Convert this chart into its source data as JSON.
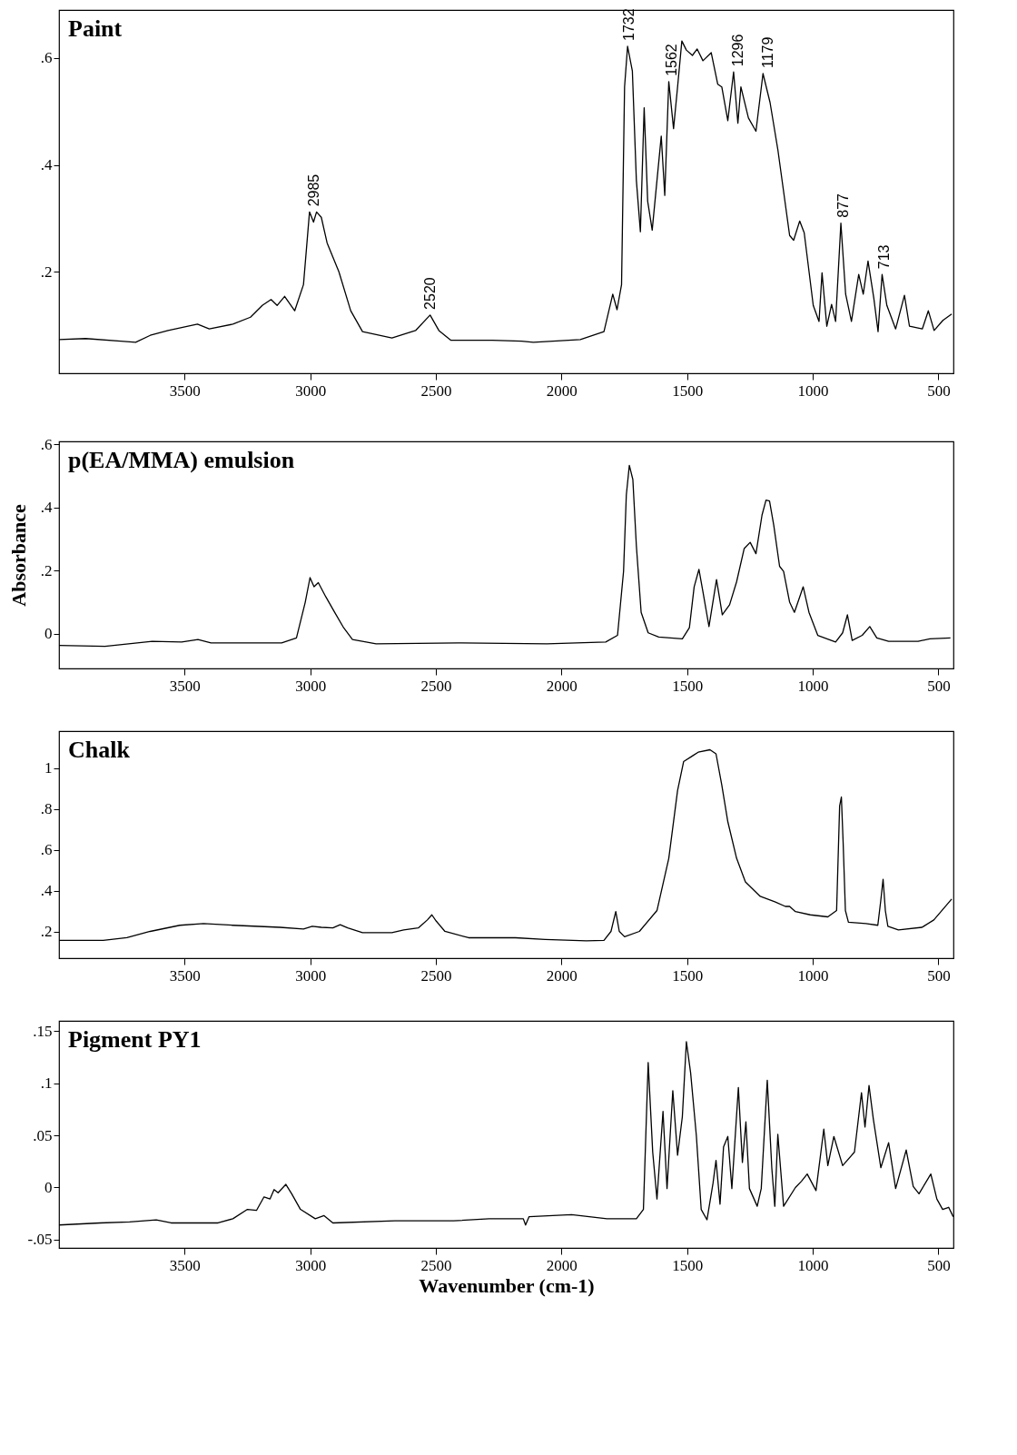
{
  "chart_data": [
    {
      "type": "line",
      "title": "Paint",
      "xlim": [
        4000,
        440
      ],
      "xticks": [
        3500,
        3000,
        2500,
        2000,
        1500,
        1000,
        500
      ],
      "ylim": [
        0.01,
        0.69
      ],
      "yticks": [
        {
          "value": 0.2,
          "label": ".2"
        },
        {
          "value": 0.4,
          "label": ".4"
        },
        {
          "value": 0.6,
          "label": ".6"
        }
      ],
      "grid": false,
      "marker": "none",
      "annotations": [
        {
          "text": "2985",
          "x": 2985,
          "y": 0.312
        },
        {
          "text": "2520",
          "x": 2520,
          "y": 0.119
        },
        {
          "text": "1732",
          "x": 1732,
          "y": 0.622
        },
        {
          "text": "1562",
          "x": 1562,
          "y": 0.556
        },
        {
          "text": "1296",
          "x": 1296,
          "y": 0.574
        },
        {
          "text": "1179",
          "x": 1179,
          "y": 0.571
        },
        {
          "text": "877",
          "x": 877,
          "y": 0.291
        },
        {
          "text": "713",
          "x": 713,
          "y": 0.195
        }
      ],
      "series": [
        {
          "color": "#000000",
          "x": [
            4000,
            3894,
            3754,
            3695,
            3637,
            3566,
            3449,
            3402,
            3308,
            3238,
            3191,
            3156,
            3132,
            3102,
            3062,
            3027,
            3003,
            2987,
            2975,
            2956,
            2933,
            2886,
            2839,
            2792,
            2675,
            2581,
            2523,
            2488,
            2441,
            2276,
            2159,
            2112,
            1925,
            1831,
            1796,
            1779,
            1761,
            1749,
            1737,
            1718,
            1702,
            1686,
            1671,
            1657,
            1639,
            1620,
            1603,
            1589,
            1573,
            1554,
            1538,
            1521,
            1503,
            1479,
            1460,
            1437,
            1404,
            1378,
            1362,
            1338,
            1315,
            1298,
            1286,
            1256,
            1226,
            1198,
            1170,
            1139,
            1092,
            1076,
            1052,
            1034,
            998,
            975,
            963,
            944,
            925,
            909,
            888,
            869,
            846,
            817,
            799,
            780,
            757,
            740,
            724,
            705,
            670,
            635,
            615,
            564,
            540,
            517,
            482,
            447
          ],
          "values": [
            0.073,
            0.075,
            0.07,
            0.068,
            0.081,
            0.09,
            0.102,
            0.093,
            0.102,
            0.115,
            0.137,
            0.148,
            0.137,
            0.154,
            0.127,
            0.176,
            0.312,
            0.293,
            0.312,
            0.302,
            0.254,
            0.2,
            0.127,
            0.088,
            0.076,
            0.09,
            0.119,
            0.09,
            0.072,
            0.072,
            0.07,
            0.068,
            0.073,
            0.088,
            0.158,
            0.129,
            0.176,
            0.546,
            0.622,
            0.576,
            0.371,
            0.275,
            0.507,
            0.332,
            0.278,
            0.371,
            0.454,
            0.343,
            0.556,
            0.468,
            0.546,
            0.632,
            0.615,
            0.605,
            0.617,
            0.595,
            0.61,
            0.551,
            0.546,
            0.483,
            0.574,
            0.478,
            0.546,
            0.488,
            0.463,
            0.571,
            0.517,
            0.429,
            0.268,
            0.259,
            0.295,
            0.273,
            0.137,
            0.107,
            0.198,
            0.098,
            0.139,
            0.107,
            0.291,
            0.158,
            0.107,
            0.195,
            0.158,
            0.22,
            0.151,
            0.088,
            0.195,
            0.137,
            0.093,
            0.156,
            0.098,
            0.093,
            0.127,
            0.09,
            0.109,
            0.121
          ]
        }
      ]
    },
    {
      "type": "line",
      "title": "p(EA/MMA) emulsion",
      "ylabel": "Absorbance",
      "xlim": [
        4000,
        440
      ],
      "xticks": [
        3500,
        3000,
        2500,
        2000,
        1500,
        1000,
        500
      ],
      "ylim": [
        -0.11,
        0.61
      ],
      "yticks": [
        {
          "value": 0,
          "label": "0"
        },
        {
          "value": 0.2,
          "label": ".2"
        },
        {
          "value": 0.4,
          "label": ".4"
        },
        {
          "value": 0.6,
          "label": ".6"
        }
      ],
      "grid": false,
      "marker": "none",
      "series": [
        {
          "color": "#000000",
          "x": [
            4000,
            3817,
            3629,
            3512,
            3447,
            3395,
            3114,
            3055,
            3020,
            3001,
            2985,
            2968,
            2938,
            2903,
            2867,
            2832,
            2738,
            2410,
            2058,
            1824,
            1777,
            1753,
            1742,
            1730,
            1716,
            1702,
            1683,
            1655,
            1613,
            1566,
            1519,
            1491,
            1472,
            1453,
            1437,
            1413,
            1383,
            1360,
            1331,
            1303,
            1273,
            1249,
            1226,
            1202,
            1186,
            1172,
            1155,
            1132,
            1116,
            1092,
            1073,
            1038,
            1015,
            980,
            909,
            881,
            862,
            843,
            803,
            773,
            745,
            698,
            581,
            534,
            452
          ],
          "values": [
            -0.037,
            -0.04,
            -0.024,
            -0.026,
            -0.018,
            -0.029,
            -0.029,
            -0.013,
            0.1,
            0.178,
            0.149,
            0.162,
            0.117,
            0.068,
            0.019,
            -0.018,
            -0.032,
            -0.029,
            -0.032,
            -0.026,
            -0.005,
            0.198,
            0.44,
            0.534,
            0.489,
            0.279,
            0.068,
            0.003,
            -0.01,
            -0.013,
            -0.016,
            0.019,
            0.149,
            0.204,
            0.133,
            0.023,
            0.172,
            0.06,
            0.092,
            0.165,
            0.27,
            0.29,
            0.254,
            0.376,
            0.424,
            0.421,
            0.343,
            0.214,
            0.198,
            0.1,
            0.068,
            0.149,
            0.068,
            -0.005,
            -0.026,
            0.003,
            0.06,
            -0.021,
            -0.005,
            0.023,
            -0.013,
            -0.024,
            -0.024,
            -0.016,
            -0.013
          ]
        }
      ]
    },
    {
      "type": "line",
      "title": "Chalk",
      "xlim": [
        4000,
        440
      ],
      "xticks": [
        3500,
        3000,
        2500,
        2000,
        1500,
        1000,
        500
      ],
      "ylim": [
        0.07,
        1.18
      ],
      "yticks": [
        {
          "value": 0.2,
          "label": ".2"
        },
        {
          "value": 0.4,
          "label": ".4"
        },
        {
          "value": 0.6,
          "label": ".6"
        },
        {
          "value": 0.8,
          "label": ".8"
        },
        {
          "value": 1,
          "label": "1"
        }
      ],
      "grid": false,
      "marker": "none",
      "series": [
        {
          "color": "#000000",
          "x": [
            4000,
            3824,
            3730,
            3637,
            3519,
            3425,
            3308,
            3121,
            3027,
            2992,
            2956,
            2910,
            2881,
            2851,
            2792,
            2675,
            2628,
            2570,
            2534,
            2516,
            2499,
            2464,
            2370,
            2183,
            2065,
            1901,
            1831,
            1803,
            1784,
            1770,
            1749,
            1690,
            1620,
            1573,
            1538,
            1514,
            1456,
            1409,
            1385,
            1362,
            1338,
            1303,
            1268,
            1209,
            1151,
            1109,
            1092,
            1069,
            1010,
            940,
            905,
            893,
            886,
            879,
            870,
            858,
            788,
            741,
            729,
            720,
            711,
            701,
            659,
            565,
            518,
            447
          ],
          "values": [
            0.157,
            0.157,
            0.17,
            0.201,
            0.231,
            0.239,
            0.231,
            0.221,
            0.213,
            0.226,
            0.221,
            0.218,
            0.234,
            0.218,
            0.195,
            0.195,
            0.208,
            0.218,
            0.257,
            0.282,
            0.252,
            0.201,
            0.17,
            0.17,
            0.162,
            0.155,
            0.157,
            0.201,
            0.298,
            0.201,
            0.175,
            0.201,
            0.303,
            0.558,
            0.89,
            1.031,
            1.077,
            1.089,
            1.069,
            0.916,
            0.737,
            0.558,
            0.443,
            0.372,
            0.346,
            0.323,
            0.323,
            0.298,
            0.282,
            0.272,
            0.303,
            0.814,
            0.858,
            0.635,
            0.303,
            0.246,
            0.239,
            0.231,
            0.354,
            0.456,
            0.303,
            0.226,
            0.208,
            0.221,
            0.257,
            0.359
          ]
        }
      ]
    },
    {
      "type": "line",
      "title": "Pigment PY1",
      "xlabel": "Wavenumber (cm-1)",
      "xlim": [
        4000,
        440
      ],
      "xticks": [
        3500,
        3000,
        2500,
        2000,
        1500,
        1000,
        500
      ],
      "ylim": [
        -0.058,
        0.16
      ],
      "yticks": [
        {
          "value": -0.05,
          "label": "-.05"
        },
        {
          "value": 0,
          "label": "0"
        },
        {
          "value": 0.05,
          "label": ".05"
        },
        {
          "value": 0.1,
          "label": ".1"
        },
        {
          "value": 0.15,
          "label": ".15"
        }
      ],
      "grid": false,
      "marker": "none",
      "series": [
        {
          "color": "#000000",
          "x": [
            4000,
            3836,
            3719,
            3613,
            3554,
            3367,
            3308,
            3250,
            3214,
            3184,
            3160,
            3144,
            3128,
            3097,
            3074,
            3039,
            2980,
            2945,
            2910,
            2663,
            2429,
            2288,
            2152,
            2143,
            2129,
            1960,
            1819,
            1702,
            1674,
            1655,
            1637,
            1620,
            1596,
            1580,
            1557,
            1538,
            1519,
            1503,
            1486,
            1463,
            1444,
            1421,
            1397,
            1385,
            1369,
            1355,
            1338,
            1322,
            1296,
            1280,
            1266,
            1252,
            1221,
            1205,
            1181,
            1163,
            1151,
            1139,
            1116,
            1069,
            1045,
            1022,
            987,
            956,
            940,
            916,
            881,
            834,
            806,
            792,
            776,
            759,
            729,
            698,
            670,
            628,
            600,
            577,
            530,
            506,
            483,
            459,
            441
          ],
          "values": [
            -0.036,
            -0.034,
            -0.033,
            -0.031,
            -0.034,
            -0.034,
            -0.03,
            -0.021,
            -0.022,
            -0.009,
            -0.011,
            -0.002,
            -0.005,
            0.003,
            -0.006,
            -0.021,
            -0.03,
            -0.027,
            -0.034,
            -0.032,
            -0.032,
            -0.03,
            -0.03,
            -0.036,
            -0.028,
            -0.026,
            -0.03,
            -0.03,
            -0.021,
            0.12,
            0.034,
            -0.011,
            0.073,
            -0.001,
            0.093,
            0.031,
            0.068,
            0.14,
            0.11,
            0.049,
            -0.021,
            -0.031,
            0.004,
            0.026,
            -0.016,
            0.039,
            0.049,
            -0.001,
            0.096,
            0.024,
            0.063,
            -0.001,
            -0.018,
            -0.001,
            0.103,
            0.019,
            -0.018,
            0.051,
            -0.018,
            0,
            0.006,
            0.013,
            -0.003,
            0.056,
            0.021,
            0.049,
            0.021,
            0.034,
            0.091,
            0.058,
            0.098,
            0.066,
            0.019,
            0.043,
            -0.001,
            0.036,
            0.001,
            -0.006,
            0.013,
            -0.011,
            -0.021,
            -0.019,
            -0.028
          ]
        }
      ]
    }
  ]
}
